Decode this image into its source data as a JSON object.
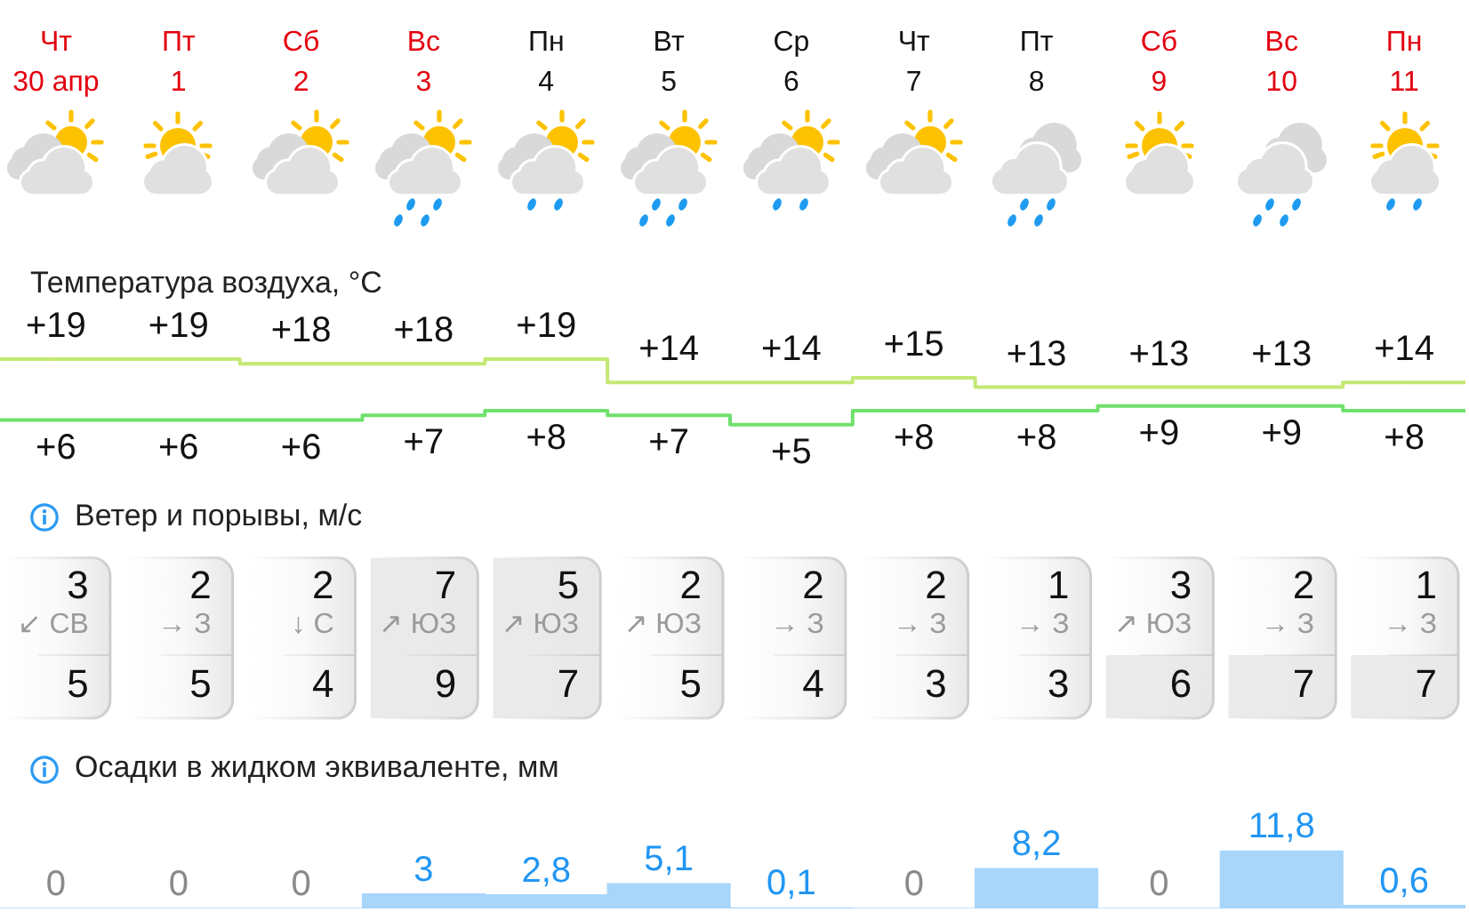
{
  "chart_data": [
    {
      "type": "step",
      "title": "Температура воздуха, °C",
      "categories": [
        "Чт\n30 апр",
        "Пт\n1",
        "Сб\n2",
        "Вс\n3",
        "Пн\n4",
        "Вт\n5",
        "Ср\n6",
        "Чт\n7",
        "Пт\n8",
        "Сб\n9",
        "Вс\n10",
        "Пн\n11"
      ],
      "tick_labels": "x",
      "series": [
        {
          "color": "#c4e874",
          "values": [
            19,
            19,
            18,
            18,
            19,
            14,
            14,
            15,
            13,
            13,
            13,
            14
          ],
          "value_labels": [
            "+19",
            "+19",
            "+18",
            "+18",
            "+19",
            "+14",
            "+14",
            "+15",
            "+13",
            "+13",
            "+13",
            "+14"
          ]
        },
        {
          "color": "#6fe06c",
          "values": [
            6,
            6,
            6,
            7,
            8,
            7,
            5,
            8,
            8,
            9,
            9,
            8
          ],
          "value_labels": [
            "+6",
            "+6",
            "+6",
            "+7",
            "+8",
            "+7",
            "+5",
            "+8",
            "+8",
            "+9",
            "+9",
            "+8"
          ]
        }
      ]
    },
    {
      "type": "other",
      "title": "Ветер и порывы, м/с",
      "annotations": [
        "3",
        "↙ СВ",
        "5",
        "2",
        "→ З",
        "5",
        "2",
        "↓ С",
        "4",
        "7",
        "↗ ЮЗ",
        "9",
        "5",
        "↗ ЮЗ",
        "7",
        "2",
        "↗ ЮЗ",
        "5",
        "2",
        "→ З",
        "4",
        "2",
        "→ З",
        "3",
        "1",
        "→ З",
        "3",
        "3",
        "↗ ЮЗ",
        "6",
        "2",
        "→ З",
        "7",
        "1",
        "→ З",
        "7"
      ]
    },
    {
      "type": "bar",
      "title": "Осадки в жидком эквиваленте, мм",
      "categories": [
        null,
        null,
        null,
        null,
        null,
        null,
        null,
        null,
        null,
        null,
        null,
        null
      ],
      "tick_labels": false,
      "values": [
        0,
        0,
        0,
        3,
        2.8,
        5.1,
        0.1,
        0,
        8.2,
        0,
        11.8,
        0.6
      ],
      "color": "#a8d6fb",
      "value_labels": [
        "0",
        "0",
        "0",
        "3",
        "2,8",
        "5,1",
        "0,1",
        "0",
        "8,2",
        "0",
        "11,8",
        "0,6"
      ]
    }
  ]
}
